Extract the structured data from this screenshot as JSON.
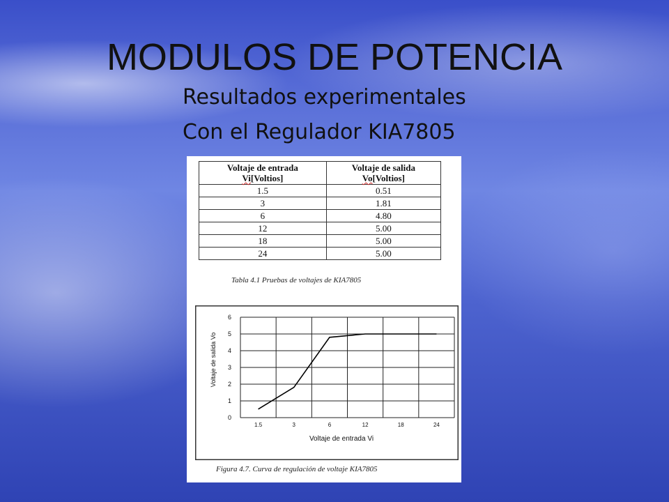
{
  "slide": {
    "title": "MODULOS DE POTENCIA",
    "subtitle1": "Resultados experimentales",
    "subtitle2": "Con el Regulador KIA7805"
  },
  "table": {
    "headers": [
      {
        "line1": "Voltaje de entrada",
        "sym": "Vi",
        "rest": "[Voltios]"
      },
      {
        "line1": "Voltaje de salida",
        "sym": "Vo",
        "rest": "[Voltios]"
      }
    ],
    "rows": [
      [
        "1.5",
        "0.51"
      ],
      [
        "3",
        "1.81"
      ],
      [
        "6",
        "4.80"
      ],
      [
        "12",
        "5.00"
      ],
      [
        "18",
        "5.00"
      ],
      [
        "24",
        "5.00"
      ]
    ],
    "caption": "Tabla 4.1 Pruebas de voltajes de KIA7805"
  },
  "chart_data": {
    "type": "line",
    "categories": [
      "1.5",
      "3",
      "6",
      "12",
      "18",
      "24"
    ],
    "series": [
      {
        "values": [
          0.51,
          1.81,
          4.8,
          5.0,
          5.0,
          5.0
        ]
      }
    ],
    "xlabel": "Voltaje de entrada Vi",
    "ylabel": "Voltaje de salida Vo",
    "ylim": [
      0,
      6
    ],
    "yticks": [
      "0",
      "1",
      "2",
      "3",
      "4",
      "5",
      "6"
    ],
    "grid": true,
    "line_color": "#000000",
    "caption": "Figura 4.7. Curva de regulación de voltaje  KIA7805"
  }
}
